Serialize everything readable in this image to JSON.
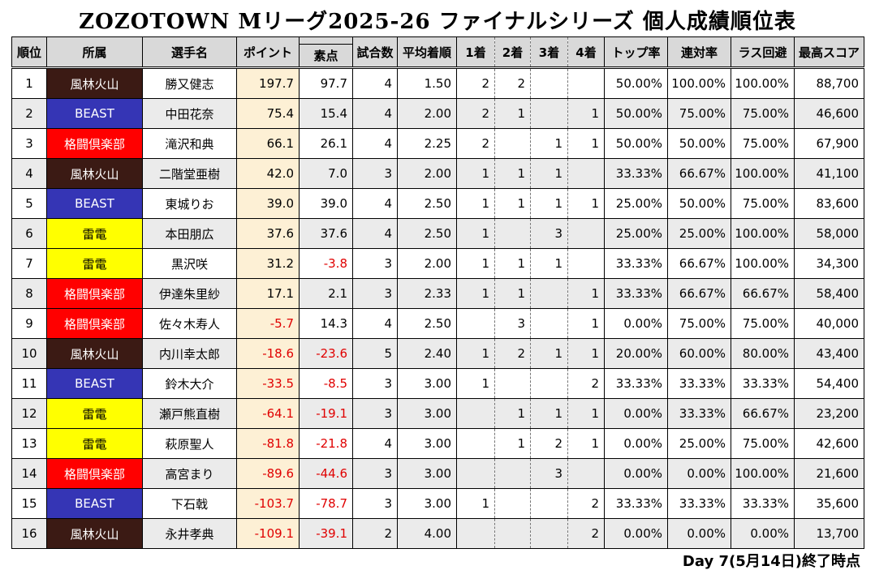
{
  "title": "ZOZOTOWN Mリーグ2025-26 ファイナルシリーズ 個人成績順位表",
  "headers": {
    "rank": "順位",
    "team": "所属",
    "player": "選手名",
    "points": "ポイント",
    "raw": "素点",
    "games": "試合数",
    "avg": "平均着順",
    "p1": "1着",
    "p2": "2着",
    "p3": "3着",
    "p4": "4着",
    "top_rate": "トップ率",
    "rentai": "連対率",
    "last_avoid": "ラス回避",
    "best": "最高スコア"
  },
  "team_colors": {
    "風林火山": {
      "bg": "#3b1a14",
      "fg": "#ffffff"
    },
    "BEAST": {
      "bg": "#3535b5",
      "fg": "#ffffff"
    },
    "格闘倶楽部": {
      "bg": "#ff0000",
      "fg": "#ffffff"
    },
    "雷電": {
      "bg": "#ffff00",
      "fg": "#000000"
    }
  },
  "rows": [
    {
      "rank": "1",
      "team": "風林火山",
      "player": "勝又健志",
      "points": "197.7",
      "raw": "97.7",
      "games": "4",
      "avg": "1.50",
      "p1": "2",
      "p2": "2",
      "p3": "",
      "p4": "",
      "top": "50.00%",
      "rentai": "100.00%",
      "last": "100.00%",
      "best": "88,700"
    },
    {
      "rank": "2",
      "team": "BEAST",
      "player": "中田花奈",
      "points": "75.4",
      "raw": "15.4",
      "games": "4",
      "avg": "2.00",
      "p1": "2",
      "p2": "1",
      "p3": "",
      "p4": "1",
      "top": "50.00%",
      "rentai": "75.00%",
      "last": "75.00%",
      "best": "46,600"
    },
    {
      "rank": "3",
      "team": "格闘倶楽部",
      "player": "滝沢和典",
      "points": "66.1",
      "raw": "26.1",
      "games": "4",
      "avg": "2.25",
      "p1": "2",
      "p2": "",
      "p3": "1",
      "p4": "1",
      "top": "50.00%",
      "rentai": "50.00%",
      "last": "75.00%",
      "best": "67,900"
    },
    {
      "rank": "4",
      "team": "風林火山",
      "player": "二階堂亜樹",
      "points": "42.0",
      "raw": "7.0",
      "games": "3",
      "avg": "2.00",
      "p1": "1",
      "p2": "1",
      "p3": "1",
      "p4": "",
      "top": "33.33%",
      "rentai": "66.67%",
      "last": "100.00%",
      "best": "41,100"
    },
    {
      "rank": "5",
      "team": "BEAST",
      "player": "東城りお",
      "points": "39.0",
      "raw": "39.0",
      "games": "4",
      "avg": "2.50",
      "p1": "1",
      "p2": "1",
      "p3": "1",
      "p4": "1",
      "top": "25.00%",
      "rentai": "50.00%",
      "last": "75.00%",
      "best": "83,600"
    },
    {
      "rank": "6",
      "team": "雷電",
      "player": "本田朋広",
      "points": "37.6",
      "raw": "37.6",
      "games": "4",
      "avg": "2.50",
      "p1": "1",
      "p2": "",
      "p3": "3",
      "p4": "",
      "top": "25.00%",
      "rentai": "25.00%",
      "last": "100.00%",
      "best": "58,000"
    },
    {
      "rank": "7",
      "team": "雷電",
      "player": "黒沢咲",
      "points": "31.2",
      "raw": "-3.8",
      "games": "3",
      "avg": "2.00",
      "p1": "1",
      "p2": "1",
      "p3": "1",
      "p4": "",
      "top": "33.33%",
      "rentai": "66.67%",
      "last": "100.00%",
      "best": "34,300"
    },
    {
      "rank": "8",
      "team": "格闘倶楽部",
      "player": "伊達朱里紗",
      "points": "17.1",
      "raw": "2.1",
      "games": "3",
      "avg": "2.33",
      "p1": "1",
      "p2": "1",
      "p3": "",
      "p4": "1",
      "top": "33.33%",
      "rentai": "66.67%",
      "last": "66.67%",
      "best": "58,400"
    },
    {
      "rank": "9",
      "team": "格闘倶楽部",
      "player": "佐々木寿人",
      "points": "-5.7",
      "raw": "14.3",
      "games": "4",
      "avg": "2.50",
      "p1": "",
      "p2": "3",
      "p3": "",
      "p4": "1",
      "top": "0.00%",
      "rentai": "75.00%",
      "last": "75.00%",
      "best": "40,000"
    },
    {
      "rank": "10",
      "team": "風林火山",
      "player": "内川幸太郎",
      "points": "-18.6",
      "raw": "-23.6",
      "games": "5",
      "avg": "2.40",
      "p1": "1",
      "p2": "2",
      "p3": "1",
      "p4": "1",
      "top": "20.00%",
      "rentai": "60.00%",
      "last": "80.00%",
      "best": "43,400"
    },
    {
      "rank": "11",
      "team": "BEAST",
      "player": "鈴木大介",
      "points": "-33.5",
      "raw": "-8.5",
      "games": "3",
      "avg": "3.00",
      "p1": "1",
      "p2": "",
      "p3": "",
      "p4": "2",
      "top": "33.33%",
      "rentai": "33.33%",
      "last": "33.33%",
      "best": "54,400"
    },
    {
      "rank": "12",
      "team": "雷電",
      "player": "瀬戸熊直樹",
      "points": "-64.1",
      "raw": "-19.1",
      "games": "3",
      "avg": "3.00",
      "p1": "",
      "p2": "1",
      "p3": "1",
      "p4": "1",
      "top": "0.00%",
      "rentai": "33.33%",
      "last": "66.67%",
      "best": "23,200"
    },
    {
      "rank": "13",
      "team": "雷電",
      "player": "萩原聖人",
      "points": "-81.8",
      "raw": "-21.8",
      "games": "4",
      "avg": "3.00",
      "p1": "",
      "p2": "1",
      "p3": "2",
      "p4": "1",
      "top": "0.00%",
      "rentai": "25.00%",
      "last": "75.00%",
      "best": "42,600"
    },
    {
      "rank": "14",
      "team": "格闘倶楽部",
      "player": "高宮まり",
      "points": "-89.6",
      "raw": "-44.6",
      "games": "3",
      "avg": "3.00",
      "p1": "",
      "p2": "",
      "p3": "3",
      "p4": "",
      "top": "0.00%",
      "rentai": "0.00%",
      "last": "100.00%",
      "best": "21,600"
    },
    {
      "rank": "15",
      "team": "BEAST",
      "player": "下石戟",
      "points": "-103.7",
      "raw": "-78.7",
      "games": "3",
      "avg": "3.00",
      "p1": "1",
      "p2": "",
      "p3": "",
      "p4": "2",
      "top": "33.33%",
      "rentai": "33.33%",
      "last": "33.33%",
      "best": "35,600"
    },
    {
      "rank": "16",
      "team": "風林火山",
      "player": "永井孝典",
      "points": "-109.1",
      "raw": "-39.1",
      "games": "2",
      "avg": "4.00",
      "p1": "",
      "p2": "",
      "p3": "",
      "p4": "2",
      "top": "0.00%",
      "rentai": "0.00%",
      "last": "0.00%",
      "best": "13,700"
    }
  ],
  "footer": "Day 7(5月14日)終了時点"
}
